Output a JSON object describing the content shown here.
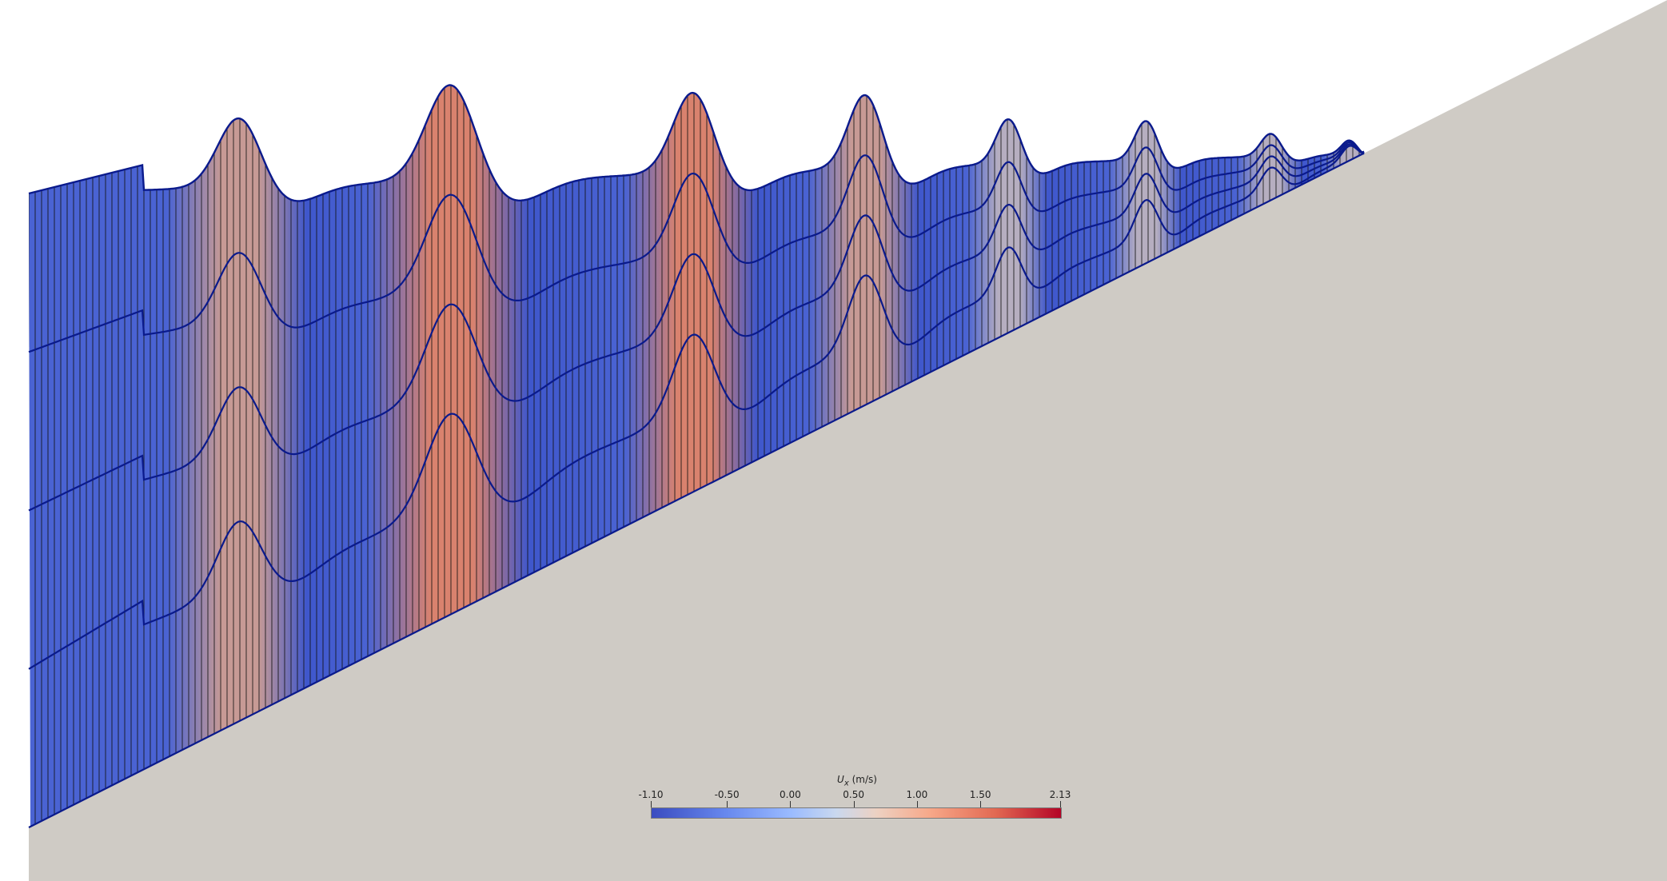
{
  "scene": {
    "description_free": true,
    "background_color": "#ffffff",
    "slope_color": "#cfcbc5",
    "mesh_edge_color": "#111111",
    "outline_color": "#0a1a8c"
  },
  "colorbar": {
    "variable": "U",
    "subscript": "x",
    "unit": "(m/s)",
    "tick_labels": [
      "-1.10",
      "-0.50",
      "0.00",
      "0.50",
      "1.00",
      "1.50",
      "2.13"
    ],
    "tick_values": [
      -1.1,
      -0.5,
      0.0,
      0.5,
      1.0,
      1.5,
      2.13
    ],
    "range": [
      -1.1,
      2.13
    ],
    "colormap": "Cool to Warm"
  }
}
